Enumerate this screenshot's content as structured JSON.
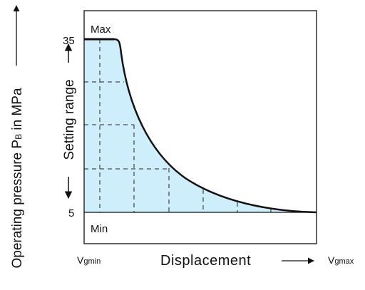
{
  "y_axis": {
    "label": "Operating pressure P",
    "subscript": "B",
    "suffix": " in MPa"
  },
  "setting_range": "Setting range",
  "max_value": "35",
  "max_label": "Max",
  "min_value": "5",
  "min_label": "Min",
  "x_axis": {
    "start": "V",
    "start_sub": "gmin",
    "label": "Displacement",
    "end": "V",
    "end_sub": "gmax"
  }
}
